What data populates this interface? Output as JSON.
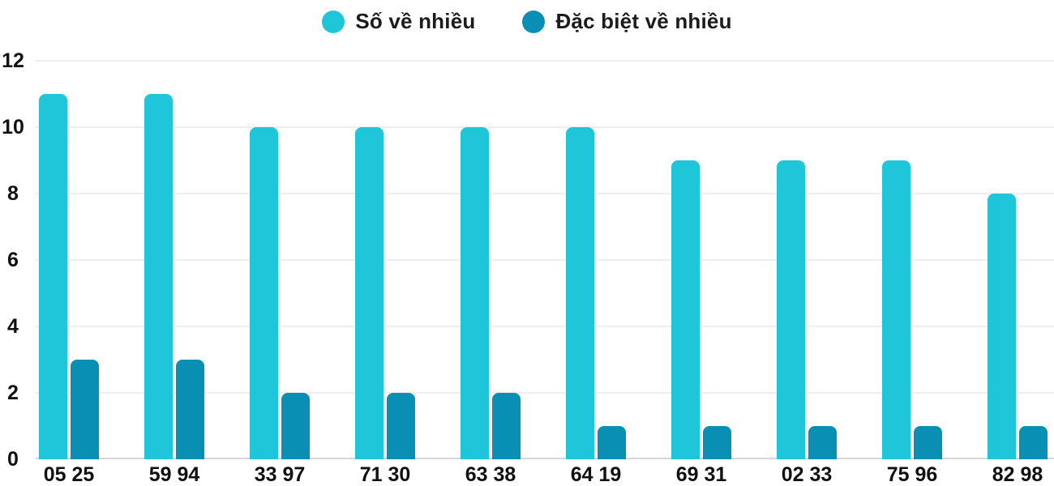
{
  "chart_data": {
    "type": "bar",
    "title": "",
    "xlabel": "",
    "ylabel": "",
    "categories": [
      "05 25",
      "59 94",
      "33 97",
      "71 30",
      "63 38",
      "64 19",
      "69 31",
      "02 33",
      "75 96",
      "82 98"
    ],
    "series": [
      {
        "name": "Số về nhiều",
        "color": "#1fc6d9",
        "values": [
          11,
          11,
          10,
          10,
          10,
          10,
          9,
          9,
          9,
          8
        ]
      },
      {
        "name": "Đặc biệt về nhiều",
        "color": "#0a8fb4",
        "values": [
          3,
          3,
          2,
          2,
          2,
          1,
          1,
          1,
          1,
          1
        ]
      }
    ],
    "ylim": [
      0,
      12
    ],
    "yticks": [
      0,
      2,
      4,
      6,
      8,
      10,
      12
    ],
    "grid": true,
    "legend_position": "top-center",
    "text_color": "#1c1c1c",
    "gridline_color": "#eeeeee",
    "baseline_color": "#d7d7d7"
  }
}
